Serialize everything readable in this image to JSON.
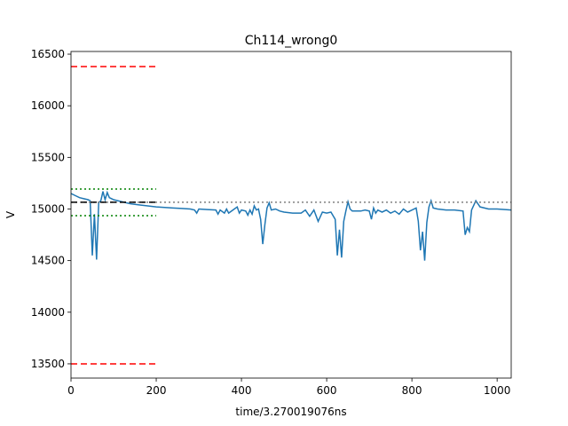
{
  "chart_data": {
    "type": "line",
    "title": "Ch114_wrong0",
    "xlabel": "time/3.270019076ns",
    "ylabel": "V",
    "xlim": [
      0,
      1033
    ],
    "ylim": [
      13362,
      16526
    ],
    "xticks": [
      0,
      200,
      400,
      600,
      800,
      1000
    ],
    "yticks": [
      13500,
      14000,
      14500,
      15000,
      15500,
      16000,
      16500
    ],
    "series": [
      {
        "color": "#1f77b4",
        "style": "solid",
        "x": [
          0,
          10,
          20,
          30,
          40,
          45,
          50,
          55,
          60,
          65,
          70,
          75,
          80,
          85,
          90,
          100,
          120,
          140,
          160,
          180,
          200,
          220,
          240,
          260,
          280,
          290,
          295,
          300,
          320,
          340,
          345,
          350,
          360,
          365,
          370,
          380,
          390,
          395,
          400,
          410,
          415,
          420,
          425,
          430,
          435,
          440,
          445,
          450,
          455,
          460,
          465,
          470,
          480,
          490,
          500,
          520,
          540,
          550,
          560,
          570,
          580,
          590,
          600,
          610,
          620,
          625,
          630,
          635,
          640,
          645,
          650,
          655,
          660,
          680,
          690,
          700,
          705,
          710,
          715,
          720,
          730,
          740,
          750,
          760,
          770,
          780,
          790,
          800,
          810,
          815,
          820,
          825,
          830,
          835,
          840,
          845,
          850,
          860,
          880,
          900,
          920,
          925,
          930,
          935,
          940,
          950,
          960,
          980,
          1000,
          1033
        ],
        "values": [
          15150,
          15130,
          15110,
          15100,
          15090,
          15080,
          14550,
          14950,
          14510,
          15060,
          15080,
          15170,
          15090,
          15160,
          15110,
          15090,
          15070,
          15050,
          15040,
          15030,
          15020,
          15015,
          15010,
          15005,
          15000,
          14990,
          14960,
          15000,
          14995,
          14990,
          14950,
          14990,
          14960,
          15000,
          14960,
          14990,
          15020,
          14960,
          14990,
          14980,
          14940,
          14990,
          14950,
          15030,
          14990,
          15000,
          14900,
          14660,
          14850,
          15010,
          15060,
          14990,
          15000,
          14980,
          14970,
          14960,
          14960,
          14990,
          14930,
          14990,
          14880,
          14970,
          14960,
          14970,
          14900,
          14550,
          14800,
          14530,
          14880,
          14980,
          15070,
          15000,
          14980,
          14980,
          14990,
          14980,
          14900,
          15010,
          14960,
          14990,
          14970,
          14990,
          14960,
          14980,
          14950,
          15000,
          14970,
          14990,
          15010,
          14880,
          14600,
          14780,
          14500,
          14870,
          15020,
          15080,
          15010,
          15000,
          14990,
          14990,
          14980,
          14750,
          14820,
          14780,
          14990,
          15080,
          15020,
          15000,
          15000,
          14990
        ]
      },
      {
        "color": "#808080",
        "style": "dotted",
        "x": [
          0,
          1033
        ],
        "values": [
          15065,
          15065
        ]
      },
      {
        "color": "#ff0000",
        "style": "dashed",
        "x": [
          0,
          200
        ],
        "values": [
          16380,
          16380
        ]
      },
      {
        "color": "#ff0000",
        "style": "dashed",
        "x": [
          0,
          200
        ],
        "values": [
          13500,
          13500
        ]
      },
      {
        "color": "#008000",
        "style": "dotted",
        "x": [
          0,
          200
        ],
        "values": [
          15193,
          15193
        ]
      },
      {
        "color": "#008000",
        "style": "dotted",
        "x": [
          0,
          200
        ],
        "values": [
          14935,
          14935
        ]
      },
      {
        "color": "#000000",
        "style": "dashed",
        "x": [
          0,
          200
        ],
        "values": [
          15065,
          15065
        ]
      }
    ]
  }
}
